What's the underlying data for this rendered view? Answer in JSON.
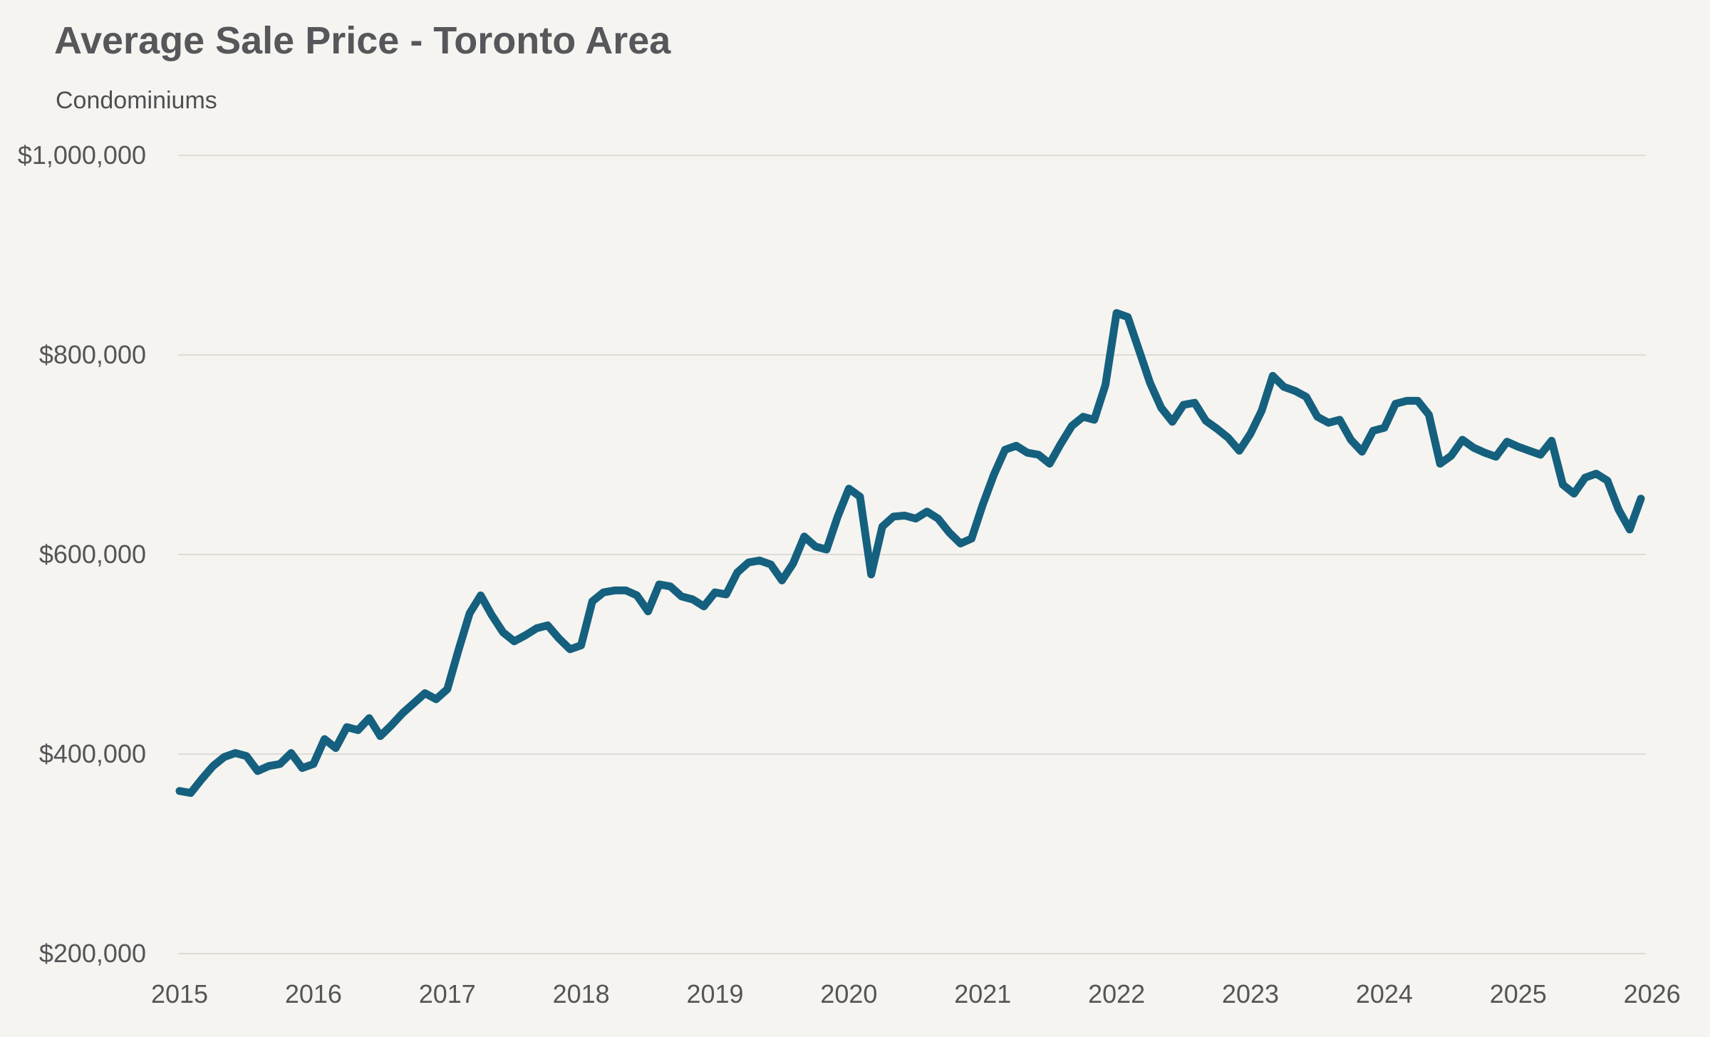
{
  "header": {
    "title": "Average Sale Price - Toronto Area",
    "subtitle": "Condominiums"
  },
  "chart_data": {
    "type": "line",
    "title": "Average Sale Price - Toronto Area",
    "subtitle": "Condominiums",
    "series_name": "Average sale price",
    "frequency": "monthly",
    "x_start": "2015-01",
    "x_end": "2025-12",
    "x_tick_labels": [
      "2015",
      "2016",
      "2017",
      "2018",
      "2019",
      "2020",
      "2021",
      "2022",
      "2023",
      "2024",
      "2025",
      "2026"
    ],
    "y_ticks": [
      1000000,
      800000,
      600000,
      400000,
      200000
    ],
    "y_tick_labels": [
      "$1,000,000",
      "$800,000",
      "$600,000",
      "$400,000",
      "$200,000"
    ],
    "ylim": [
      200000,
      1000000
    ],
    "grid": "horizontal",
    "legend": false,
    "line_color": "#15607e",
    "grid_color": "#dedcd7",
    "background_color": "#f5f4f0",
    "values": [
      363000,
      361000,
      375000,
      388000,
      397000,
      401000,
      398000,
      383000,
      388000,
      390000,
      401000,
      386000,
      390000,
      415000,
      406000,
      427000,
      424000,
      436000,
      418000,
      429000,
      441000,
      451000,
      461000,
      455000,
      465000,
      504000,
      541000,
      559000,
      539000,
      522000,
      513000,
      519000,
      526000,
      529000,
      516000,
      505000,
      509000,
      553000,
      562000,
      564000,
      564000,
      559000,
      543000,
      570000,
      568000,
      558000,
      555000,
      548000,
      562000,
      560000,
      582000,
      592000,
      594000,
      590000,
      574000,
      591000,
      618000,
      608000,
      605000,
      638000,
      666000,
      658000,
      580000,
      628000,
      638000,
      639000,
      636000,
      643000,
      636000,
      622000,
      611000,
      616000,
      650000,
      680000,
      705000,
      709000,
      702000,
      700000,
      691000,
      711000,
      729000,
      738000,
      735000,
      770000,
      842000,
      838000,
      805000,
      772000,
      747000,
      733000,
      750000,
      752000,
      734000,
      726000,
      717000,
      704000,
      721000,
      744000,
      779000,
      768000,
      764000,
      758000,
      738000,
      732000,
      735000,
      715000,
      703000,
      724000,
      727000,
      751000,
      754000,
      754000,
      740000,
      691000,
      699000,
      715000,
      707000,
      702000,
      698000,
      713000,
      708000,
      704000,
      700000,
      714000,
      670000,
      661000,
      677000,
      681000,
      674000,
      645000,
      625000,
      656000
    ]
  }
}
